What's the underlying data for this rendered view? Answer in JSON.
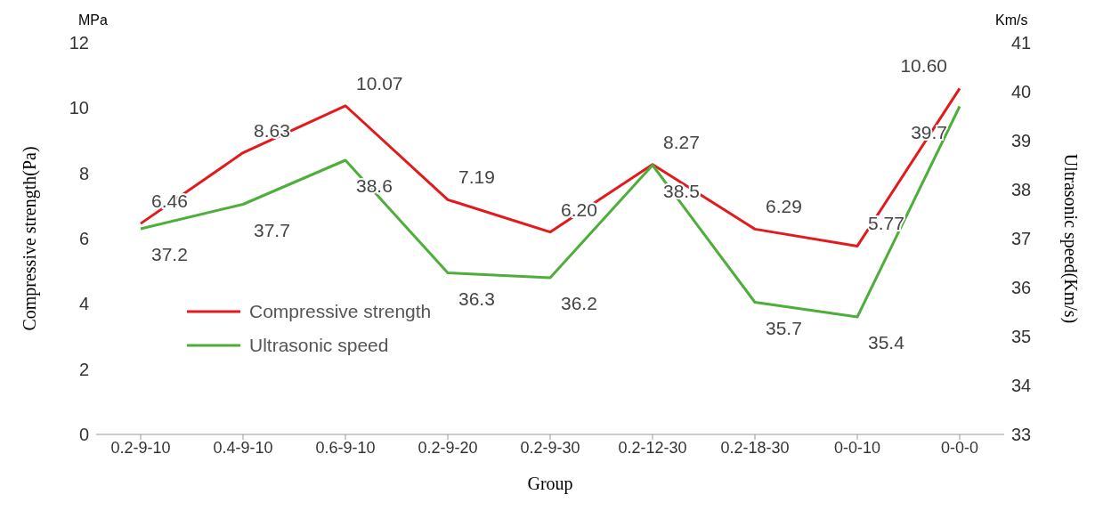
{
  "chart_data": {
    "type": "line",
    "xlabel": "Group",
    "ylabel": "Compressive strength(Pa)",
    "y2label": "Ultrasonic speed(Km/s)",
    "annotations": [
      "MPa",
      "Km/s"
    ],
    "categories": [
      "0.2-9-10",
      "0.4-9-10",
      "0.6-9-10",
      "0.2-9-20",
      "0.2-9-30",
      "0.2-12-30",
      "0.2-18-30",
      "0-0-10",
      "0-0-0"
    ],
    "series": [
      {
        "name": "Compressive strength",
        "color": "#e31a1c",
        "values": [
          6.46,
          8.63,
          10.07,
          7.19,
          6.2,
          8.27,
          6.29,
          5.77,
          10.6
        ],
        "value_labels": [
          "6.46",
          "8.63",
          "10.07",
          "7.19",
          "6.20",
          "8.27",
          "6.29",
          "5.77",
          "10.60"
        ]
      },
      {
        "name": "Ultrasonic speed",
        "color": "#4daf3a",
        "axis": "y2",
        "values": [
          37.2,
          37.7,
          38.6,
          36.3,
          36.2,
          38.5,
          35.7,
          35.4,
          39.7
        ],
        "value_labels": [
          "37.2",
          "37.7",
          "38.6",
          "36.3",
          "36.2",
          "38.5",
          "35.7",
          "35.4",
          "39.7"
        ]
      }
    ],
    "ylim": [
      0,
      12
    ],
    "yticks": [
      0,
      2,
      4,
      6,
      8,
      10,
      12
    ],
    "y2lim": [
      33,
      41
    ],
    "y2ticks": [
      33,
      34,
      35,
      36,
      37,
      38,
      39,
      40,
      41
    ],
    "legend": "bottom left",
    "grid": false,
    "marker": "none",
    "line_style": "solid"
  }
}
